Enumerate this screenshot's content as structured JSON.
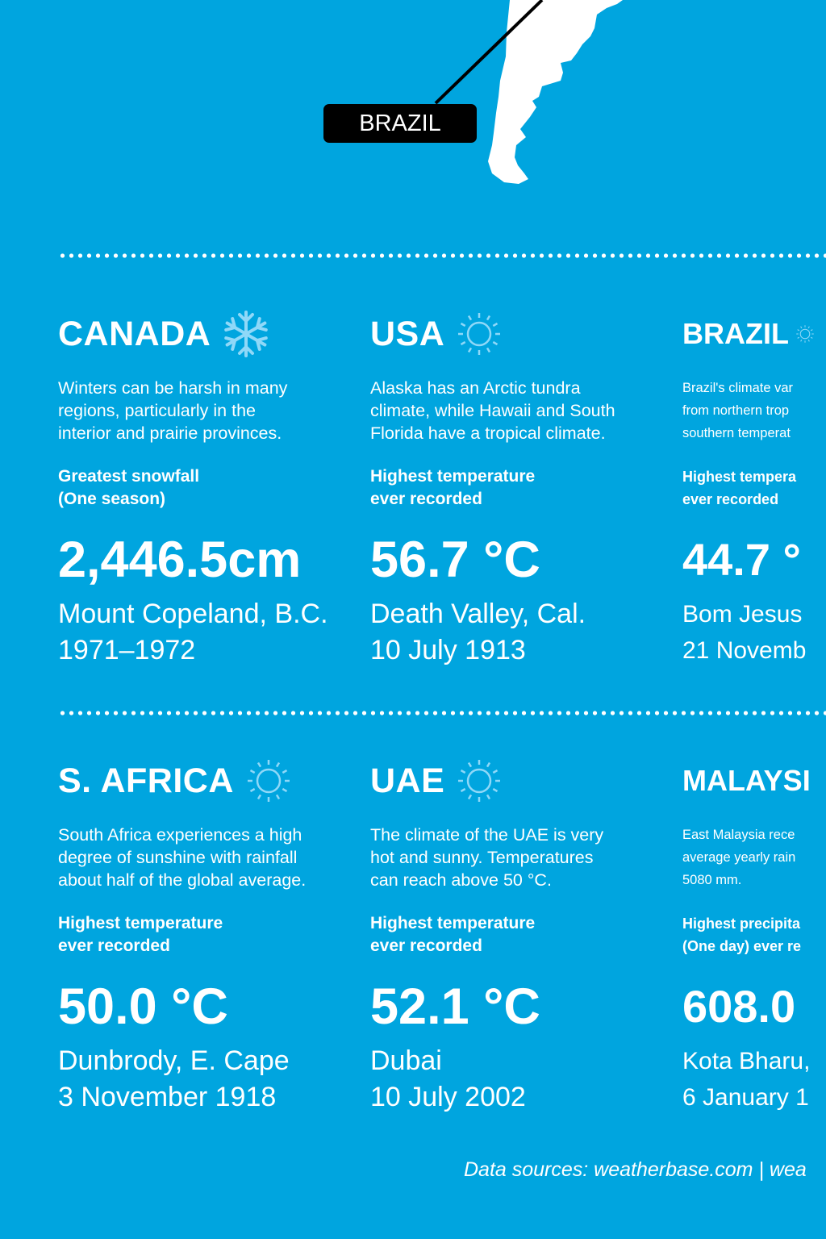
{
  "colors": {
    "background": "#00a5df",
    "icon": "#8fd8f8",
    "label_box": "#000000"
  },
  "map": {
    "label": "BRAZIL"
  },
  "cards": [
    {
      "title": "CANADA",
      "icon": "snowflake-icon",
      "desc": [
        "Winters can be harsh in many",
        "regions, particularly in the",
        "interior and prairie provinces."
      ],
      "label": [
        "Greatest snowfall",
        "(One season)"
      ],
      "value": "2,446.5cm",
      "location": "Mount Copeland, B.C.",
      "date": "1971–1972"
    },
    {
      "title": "USA",
      "icon": "sun-icon",
      "desc": [
        "Alaska has an Arctic tundra",
        "climate, while Hawaii and South",
        "Florida have a tropical climate."
      ],
      "label": [
        "Highest temperature",
        "ever recorded"
      ],
      "value": "56.7 °C",
      "location": "Death Valley, Cal.",
      "date": "10 July 1913"
    },
    {
      "title": "BRAZIL",
      "icon": "sun-icon",
      "desc": [
        "Brazil's climate var",
        "from northern trop",
        "southern temperat"
      ],
      "label": [
        "Highest tempera",
        "ever recorded"
      ],
      "value": "44.7 °",
      "location": "Bom Jesus",
      "date": "21 Novemb"
    },
    {
      "title": "S. AFRICA",
      "icon": "sun-icon",
      "desc": [
        "South Africa experiences a high",
        "degree of sunshine with rainfall",
        "about half of the global average."
      ],
      "label": [
        "Highest temperature",
        "ever recorded"
      ],
      "value": "50.0 °C",
      "location": "Dunbrody, E. Cape",
      "date": "3 November 1918"
    },
    {
      "title": "UAE",
      "icon": "sun-icon",
      "desc": [
        "The climate of the UAE is very",
        "hot and sunny. Temperatures",
        "can reach above 50 °C."
      ],
      "label": [
        "Highest temperature",
        "ever recorded"
      ],
      "value": "52.1 °C",
      "location": "Dubai",
      "date": "10 July 2002"
    },
    {
      "title": "MALAYSI",
      "icon": "none",
      "desc": [
        "East Malaysia rece",
        "average yearly rain",
        "5080 mm."
      ],
      "label": [
        "Highest precipita",
        "(One day) ever re"
      ],
      "value": "608.0",
      "location": "Kota Bharu,",
      "date": "6 January 1"
    }
  ],
  "footer": "Data sources: weatherbase.com | wea"
}
